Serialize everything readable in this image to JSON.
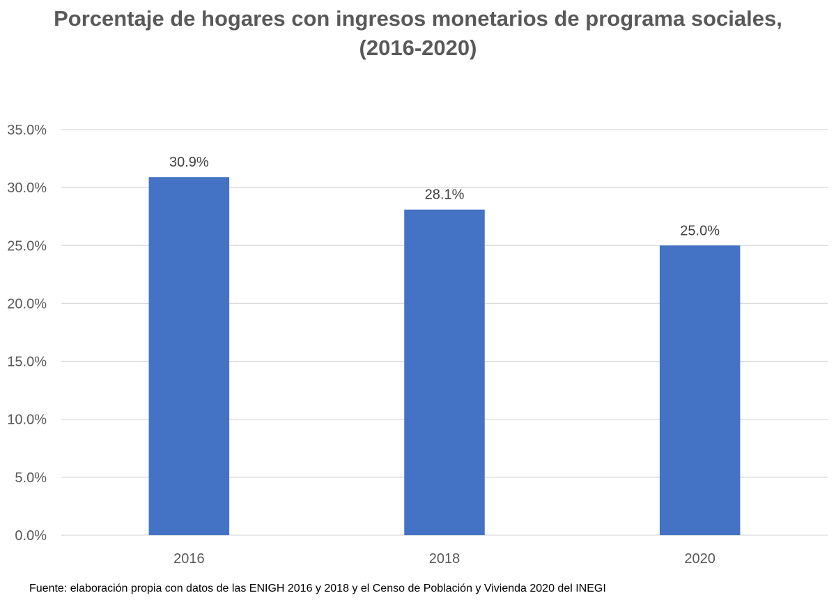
{
  "chart_data": {
    "type": "bar",
    "title_line1": "Porcentaje de hogares con ingresos monetarios de programa sociales,",
    "title_line2": "(2016-2020)",
    "categories": [
      "2016",
      "2018",
      "2020"
    ],
    "values": [
      30.9,
      28.1,
      25.0
    ],
    "data_labels": [
      "30.9%",
      "28.1%",
      "25.0%"
    ],
    "y_ticks": [
      0,
      5,
      10,
      15,
      20,
      25,
      30,
      35
    ],
    "y_tick_labels": [
      "0.0%",
      "5.0%",
      "10.0%",
      "15.0%",
      "20.0%",
      "25.0%",
      "30.0%",
      "35.0%"
    ],
    "ylim": [
      0,
      35
    ],
    "xlabel": "",
    "ylabel": "",
    "grid": true,
    "legend": "none",
    "bar_color": "#4472C4",
    "grid_color": "#D9D9D9"
  },
  "footnote": "Fuente: elaboración propia con datos de las ENIGH 2016 y 2018 y el Censo de Población y Vivienda 2020 del INEGI"
}
